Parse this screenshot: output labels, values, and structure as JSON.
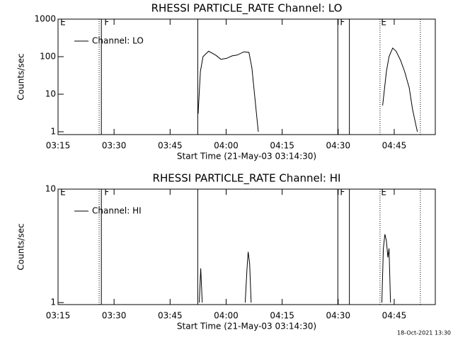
{
  "chart_data": [
    {
      "type": "line",
      "title": "RHESSI PARTICLE_RATE Channel: LO",
      "xlabel": "Start Time (21-May-03 03:14:30)",
      "ylabel": "Counts/sec",
      "log_y": true,
      "xlim": [
        195,
        296
      ],
      "ylim": [
        0.84,
        1000
      ],
      "xticks": [
        {
          "value": 195,
          "label": "03:15"
        },
        {
          "value": 210,
          "label": "03:30"
        },
        {
          "value": 225,
          "label": "03:45"
        },
        {
          "value": 240,
          "label": "04:00"
        },
        {
          "value": 255,
          "label": "04:15"
        },
        {
          "value": 270,
          "label": "04:30"
        },
        {
          "value": 285,
          "label": "04:45"
        }
      ],
      "yticks": [
        1,
        10,
        100,
        1000
      ],
      "legend": "upper left",
      "series": [
        {
          "name": "Channel: LO",
          "color": "#000000",
          "x": [
            232.5,
            233.1,
            233.8,
            235.3,
            237.2,
            238.6,
            240.1,
            241.6,
            242.9,
            244.8,
            246.1,
            246.9,
            247.7,
            248.6,
            281.2,
            281.9,
            282.9,
            283.6,
            284.6,
            285.5,
            286.7,
            287.8,
            289.0,
            289.9,
            290.8,
            291.2
          ],
          "values": [
            3,
            40,
            100,
            140,
            110,
            85,
            90,
            105,
            110,
            135,
            130,
            50,
            8,
            1,
            null,
            5,
            40,
            100,
            170,
            140,
            80,
            40,
            15,
            4,
            1.5,
            1
          ]
        }
      ],
      "markers": [
        {
          "x": 206.0,
          "style": "dotted"
        },
        {
          "x": 206.6,
          "style": "solid"
        },
        {
          "x": 232.4,
          "style": "solid"
        },
        {
          "x": 269.9,
          "style": "solid"
        },
        {
          "x": 273.0,
          "style": "solid"
        },
        {
          "x": 281.2,
          "style": "dotted"
        },
        {
          "x": 292.0,
          "style": "dotted"
        }
      ],
      "annotations": [
        {
          "text": "E",
          "x": 195.4
        },
        {
          "text": "F",
          "x": 207.2
        },
        {
          "text": "F",
          "x": 270.3
        },
        {
          "text": "E",
          "x": 281.3
        }
      ]
    },
    {
      "type": "line",
      "title": "RHESSI PARTICLE_RATE Channel: HI",
      "xlabel": "Start Time (21-May-03 03:14:30)",
      "ylabel": "Counts/sec",
      "log_y": true,
      "xlim": [
        195,
        296
      ],
      "ylim": [
        0.96,
        10
      ],
      "xticks": [
        {
          "value": 195,
          "label": "03:15"
        },
        {
          "value": 210,
          "label": "03:30"
        },
        {
          "value": 225,
          "label": "03:45"
        },
        {
          "value": 240,
          "label": "04:00"
        },
        {
          "value": 255,
          "label": "04:15"
        },
        {
          "value": 270,
          "label": "04:30"
        },
        {
          "value": 285,
          "label": "04:45"
        }
      ],
      "yticks": [
        1,
        10
      ],
      "legend": "upper left",
      "series": [
        {
          "name": "Channel: HI",
          "color": "#000000",
          "x": [
            232.8,
            233.2,
            233.6,
            240,
            245.1,
            245.6,
            245.9,
            246.3,
            246.7,
            260,
            281.7,
            282.1,
            282.5,
            282.9,
            283.3,
            283.6,
            284.0
          ],
          "values": [
            1,
            2,
            1,
            null,
            1,
            2,
            2.8,
            2.2,
            1,
            null,
            1,
            3,
            4,
            3.5,
            2.5,
            3,
            1
          ]
        }
      ],
      "markers": [
        {
          "x": 206.0,
          "style": "dotted"
        },
        {
          "x": 206.6,
          "style": "solid"
        },
        {
          "x": 232.4,
          "style": "solid"
        },
        {
          "x": 269.9,
          "style": "solid"
        },
        {
          "x": 273.0,
          "style": "solid"
        },
        {
          "x": 281.2,
          "style": "dotted"
        },
        {
          "x": 292.0,
          "style": "dotted"
        }
      ],
      "annotations": [
        {
          "text": "E",
          "x": 195.4
        },
        {
          "text": "F",
          "x": 207.2
        },
        {
          "text": "F",
          "x": 270.3
        },
        {
          "text": "E",
          "x": 281.3
        }
      ]
    }
  ],
  "footer": "18-Oct-2021 13:30"
}
